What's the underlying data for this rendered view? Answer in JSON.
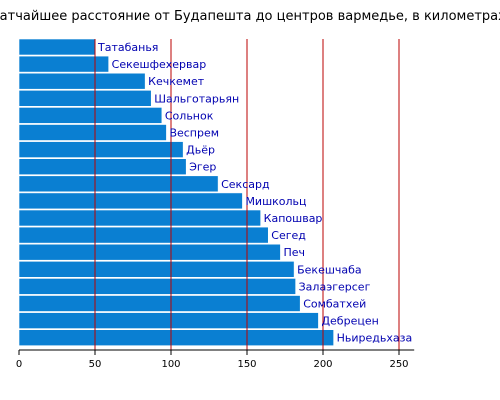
{
  "colors": {
    "bar": "#0a7fd2",
    "bar_stroke": "#ffffff",
    "label": "#0000b0",
    "gridline": "#bb0000",
    "axis": "#000000",
    "background": "#ffffff"
  },
  "chart_data": {
    "type": "bar",
    "orientation": "horizontal",
    "title": "Кратчайшее расстояние от Будапешта до центров вармедье, в километрах",
    "xlabel": "",
    "ylabel": "",
    "xlim": [
      0,
      260
    ],
    "xticks": [
      0,
      50,
      100,
      150,
      200,
      250
    ],
    "gridlines": [
      50,
      100,
      150,
      200,
      250
    ],
    "grid": true,
    "legend": "none",
    "categories": [
      "Татабанья",
      "Секешфехервар",
      "Кечкемет",
      "Шальготарьян",
      "Сольнок",
      "Веспрем",
      "Дьёр",
      "Эгер",
      "Сексард",
      "Мишкольц",
      "Капошвар",
      "Сегед",
      "Печ",
      "Бекешчаба",
      "Залаэгерсег",
      "Сомбатхей",
      "Дебрецен",
      "Ньиредьхаза"
    ],
    "values": [
      50,
      59,
      83,
      87,
      94,
      97,
      108,
      110,
      131,
      147,
      159,
      164,
      172,
      181,
      182,
      185,
      197,
      207
    ]
  }
}
